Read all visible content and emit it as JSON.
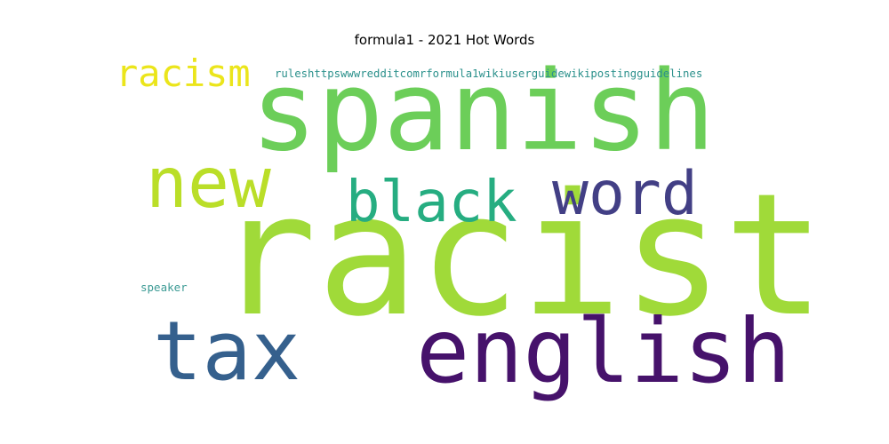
{
  "title": "formula1 - 2021 Hot Words",
  "words": [
    {
      "text": "spanish",
      "color": "#6cce59"
    },
    {
      "text": "racist",
      "color": "#a0da39"
    },
    {
      "text": "english",
      "color": "#46126b"
    },
    {
      "text": "tax",
      "color": "#35608d"
    },
    {
      "text": "word",
      "color": "#423f85"
    },
    {
      "text": "black",
      "color": "#26ad81"
    },
    {
      "text": "new",
      "color": "#bade28"
    },
    {
      "text": "racism",
      "color": "#ebe51b"
    },
    {
      "text": "ruleshttpswwwredditcomrformula1wikiuserguidewikipostingguidelines",
      "color": "#2c918c"
    },
    {
      "text": "speaker",
      "color": "#3b9a94"
    }
  ]
}
